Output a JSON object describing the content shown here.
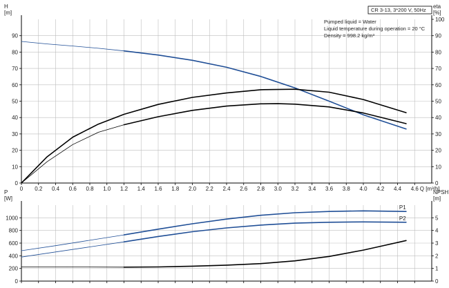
{
  "chart_data": [
    {
      "type": "line",
      "panel": "upper",
      "info_box": {
        "title": "CR 3-13, 3*200 V, 50Hz",
        "lines": [
          "Pumped liquid = Water",
          "Liquid temperature during operation = 20 °C",
          "Density = 998.2 kg/m³"
        ]
      },
      "left_axis": {
        "label": "H",
        "unit": "[m]",
        "range": [
          0,
          100
        ],
        "ticks": [
          0,
          10,
          20,
          30,
          40,
          50,
          60,
          70,
          80,
          90
        ]
      },
      "right_axis": {
        "label": "eta",
        "unit": "[%]",
        "range": [
          0,
          100
        ],
        "ticks": [
          0,
          10,
          20,
          30,
          40,
          50,
          60,
          70,
          80,
          90,
          100
        ]
      },
      "x_axis": {
        "label": "Q [m³/h]",
        "range": [
          0,
          4.8
        ],
        "ticks": [
          "0",
          "0.2",
          "0.4",
          "0.6",
          "0.8",
          "1.0",
          "1.2",
          "1.4",
          "1.6",
          "1.8",
          "2.0",
          "2.2",
          "2.4",
          "2.6",
          "2.8",
          "3.0",
          "3.2",
          "3.4",
          "3.6",
          "3.8",
          "4.0",
          "4.2",
          "4.4",
          "4.6"
        ]
      },
      "grid": true,
      "series": [
        {
          "axis": "left",
          "color": "#1f4e96",
          "x": [
            0,
            0.3,
            0.6,
            0.9,
            1.2
          ],
          "y": [
            86.5,
            85,
            83.7,
            82.3,
            80.7
          ]
        },
        {
          "axis": "left",
          "color": "#1f4e96",
          "x": [
            1.2,
            1.6,
            2.0,
            2.4,
            2.8,
            3.2,
            3.6,
            4.0,
            4.5
          ],
          "y": [
            80.7,
            78.2,
            75,
            70.7,
            65.1,
            58.1,
            50,
            41.7,
            33
          ]
        },
        {
          "axis": "right",
          "color": "#000000",
          "x": [
            0,
            0.3,
            0.6,
            0.9,
            1.2,
            1.6,
            2.0,
            2.4,
            2.8,
            3.2,
            3.6,
            4.0,
            4.5
          ],
          "y": [
            0,
            16,
            28,
            36,
            42,
            48,
            52.3,
            55,
            57,
            57.3,
            55.5,
            51,
            43
          ]
        },
        {
          "axis": "left",
          "color": "#000000",
          "x": [
            0,
            0.3,
            0.6,
            0.9,
            1.2
          ],
          "y": [
            0,
            13,
            23.5,
            31,
            35.6
          ]
        },
        {
          "axis": "left",
          "color": "#000000",
          "x": [
            1.2,
            1.6,
            2.0,
            2.4,
            2.8,
            3.0,
            3.2,
            3.6,
            4.0,
            4.5
          ],
          "y": [
            35.6,
            40.5,
            44.4,
            47,
            48.4,
            48.5,
            48.2,
            46.5,
            42.8,
            36.3
          ]
        }
      ]
    },
    {
      "type": "line",
      "panel": "lower",
      "left_axis": {
        "label": "P",
        "unit": "[W]",
        "range": [
          0,
          1200
        ],
        "ticks": [
          0,
          200,
          400,
          600,
          800,
          1000
        ]
      },
      "right_axis": {
        "label": "NPSH",
        "unit": "[m]",
        "range": [
          0,
          6
        ],
        "ticks": [
          0,
          1,
          2,
          3,
          4,
          5
        ]
      },
      "x_axis": {
        "range": [
          0,
          4.8
        ]
      },
      "grid": true,
      "series": [
        {
          "name": "P1",
          "axis": "left",
          "color": "#1f4e96",
          "x": [
            0,
            0.4,
            0.8,
            1.2
          ],
          "y": [
            480,
            560,
            645,
            730
          ]
        },
        {
          "name": "P1",
          "axis": "left",
          "color": "#1f4e96",
          "x": [
            1.2,
            1.6,
            2.0,
            2.4,
            2.8,
            3.2,
            3.6,
            4.0,
            4.5
          ],
          "y": [
            730,
            820,
            905,
            980,
            1040,
            1080,
            1100,
            1110,
            1100
          ]
        },
        {
          "name": "P2",
          "axis": "left",
          "color": "#1f4e96",
          "x": [
            0,
            0.4,
            0.8,
            1.2
          ],
          "y": [
            380,
            460,
            540,
            620
          ]
        },
        {
          "name": "P2",
          "axis": "left",
          "color": "#1f4e96",
          "x": [
            1.2,
            1.6,
            2.0,
            2.4,
            2.8,
            3.2,
            3.6,
            4.0,
            4.5
          ],
          "y": [
            620,
            705,
            780,
            840,
            885,
            915,
            930,
            935,
            930
          ]
        },
        {
          "axis": "right",
          "color": "#000000",
          "x": [
            0,
            0.6,
            1.2
          ],
          "y": [
            1.12,
            1.11,
            1.1
          ]
        },
        {
          "axis": "right",
          "color": "#000000",
          "x": [
            1.2,
            1.6,
            2.0,
            2.4,
            2.8,
            3.2,
            3.6,
            4.0,
            4.2,
            4.5
          ],
          "y": [
            1.1,
            1.12,
            1.18,
            1.26,
            1.38,
            1.6,
            1.95,
            2.45,
            2.75,
            3.2
          ]
        }
      ]
    }
  ]
}
